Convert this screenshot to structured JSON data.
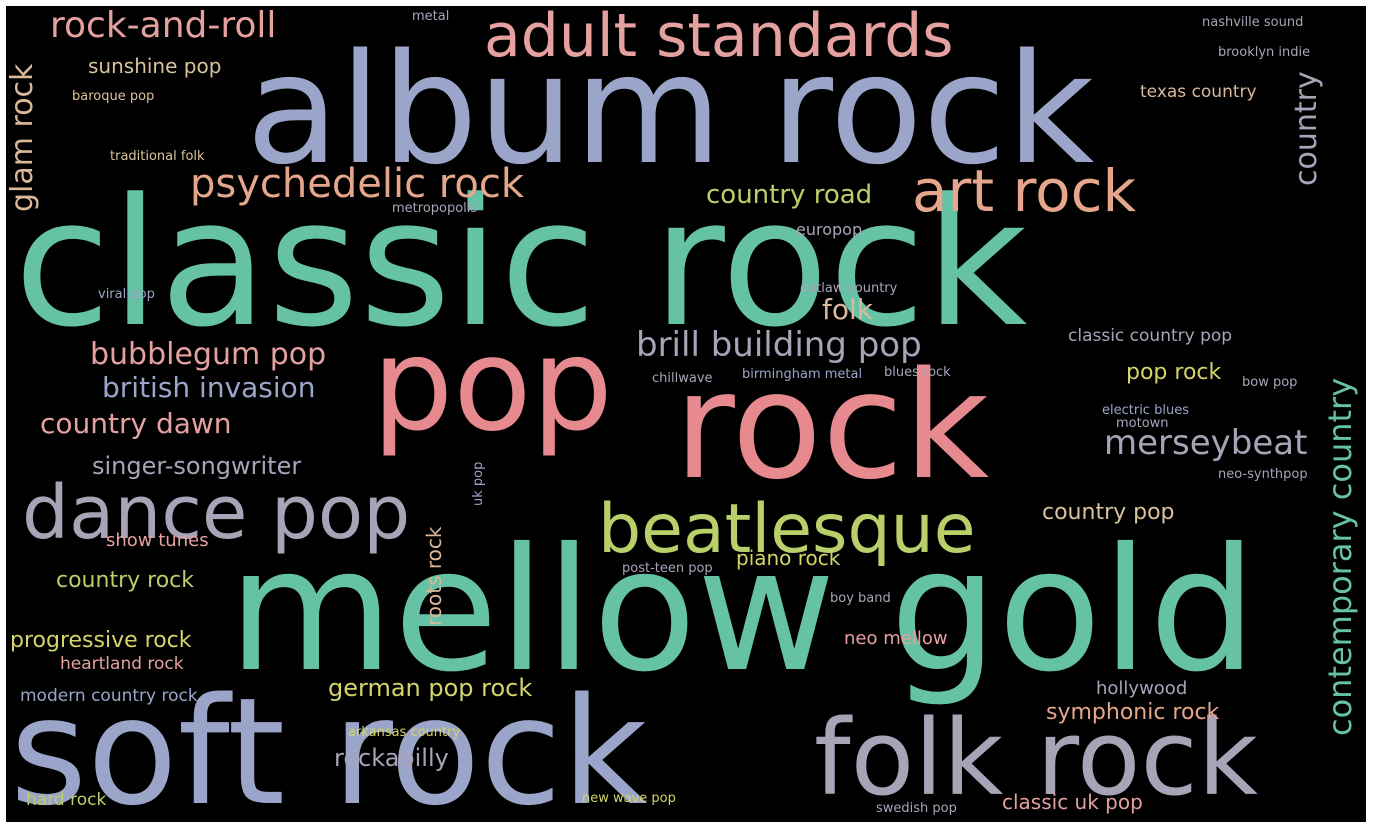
{
  "palette": {
    "background": "#000000",
    "green": "#66c2a5",
    "blue": "#8da0cb",
    "pink": "#e78a8f",
    "yellowgreen": "#b9cf6a",
    "peach": "#e5a68c",
    "lavender": "#a9a3c6",
    "lightgreen": "#a6d854",
    "softblue": "#9fb0d6",
    "tan": "#d9b89c"
  },
  "words": [
    {
      "id": "classic-rock",
      "text": "classic rock",
      "color": "#66c2a5"
    },
    {
      "id": "album-rock",
      "text": "album rock",
      "color": "#9aa5c9"
    },
    {
      "id": "mellow-gold",
      "text": "mellow gold",
      "color": "#66c2a5"
    },
    {
      "id": "rock",
      "text": "rock",
      "color": "#e78a8f"
    },
    {
      "id": "soft-rock",
      "text": "soft rock",
      "color": "#9aa5c9"
    },
    {
      "id": "pop",
      "text": "pop",
      "color": "#e78a8f"
    },
    {
      "id": "folk-rock",
      "text": "folk rock",
      "color": "#a9a3b8"
    },
    {
      "id": "dance-pop",
      "text": "dance pop",
      "color": "#a9a3b8"
    },
    {
      "id": "beatlesque",
      "text": "beatlesque",
      "color": "#b9cf6a"
    },
    {
      "id": "adult-standards",
      "text": "adult standards",
      "color": "#e5a0a0"
    },
    {
      "id": "art-rock",
      "text": "art rock",
      "color": "#e5a68c"
    },
    {
      "id": "psychedelic-rock",
      "text": "psychedelic rock",
      "color": "#e5a68c"
    },
    {
      "id": "rock-and-roll",
      "text": "rock-and-roll",
      "color": "#e5a0a0"
    },
    {
      "id": "brill-building-pop",
      "text": "brill building pop",
      "color": "#a9a3b8"
    },
    {
      "id": "contemporary-country",
      "text": "contemporary country",
      "color": "#66c2a5"
    },
    {
      "id": "merseybeat",
      "text": "merseybeat",
      "color": "#a9a3b8"
    },
    {
      "id": "bubblegum-pop",
      "text": "bubblegum pop",
      "color": "#e5a0a0"
    },
    {
      "id": "british-invasion",
      "text": "british invasion",
      "color": "#9aa5c9"
    },
    {
      "id": "country-dawn",
      "text": "country dawn",
      "color": "#e5a0a0"
    },
    {
      "id": "singer-songwriter",
      "text": "singer-songwriter",
      "color": "#a9a3b8"
    },
    {
      "id": "country-road",
      "text": "country road",
      "color": "#b9cf6a"
    },
    {
      "id": "glam-rock",
      "text": "glam rock",
      "color": "#d9b89c"
    },
    {
      "id": "country",
      "text": "country",
      "color": "#a9a3b8"
    },
    {
      "id": "folk",
      "text": "folk",
      "color": "#d9b89c"
    },
    {
      "id": "sunshine-pop",
      "text": "sunshine pop",
      "color": "#d9c39c"
    },
    {
      "id": "pop-rock",
      "text": "pop rock",
      "color": "#d4d46a"
    },
    {
      "id": "country-pop",
      "text": "country pop",
      "color": "#d9c39c"
    },
    {
      "id": "country-rock",
      "text": "country rock",
      "color": "#b9cf6a"
    },
    {
      "id": "progressive-rock",
      "text": "progressive rock",
      "color": "#d4d46a"
    },
    {
      "id": "heartland-rock",
      "text": "heartland rock",
      "color": "#e5a0a0"
    },
    {
      "id": "german-pop-rock",
      "text": "german pop rock",
      "color": "#d4d46a"
    },
    {
      "id": "symphonic-rock",
      "text": "symphonic rock",
      "color": "#e5a68c"
    },
    {
      "id": "rockabilly",
      "text": "rockabilly",
      "color": "#a9a3b8"
    },
    {
      "id": "classic-uk-pop",
      "text": "classic uk pop",
      "color": "#e5a0a0"
    },
    {
      "id": "roots-rock",
      "text": "roots rock",
      "color": "#d9b89c"
    },
    {
      "id": "piano-rock",
      "text": "piano rock",
      "color": "#d4d46a"
    },
    {
      "id": "show-tunes",
      "text": "show tunes",
      "color": "#e5a0a0"
    },
    {
      "id": "neo-mellow",
      "text": "neo mellow",
      "color": "#e5a0a0"
    },
    {
      "id": "hollywood",
      "text": "hollywood",
      "color": "#a9a3b8"
    },
    {
      "id": "modern-country-rock",
      "text": "modern country rock",
      "color": "#9aa5c9"
    },
    {
      "id": "hard-rock",
      "text": "hard rock",
      "color": "#b9cf6a"
    },
    {
      "id": "classic-country-pop",
      "text": "classic country pop",
      "color": "#a9a3b8"
    },
    {
      "id": "texas-country",
      "text": "texas country",
      "color": "#d9b89c"
    },
    {
      "id": "europop",
      "text": "europop",
      "color": "#a9a3b8"
    },
    {
      "id": "outlaw-country",
      "text": "outlaw country",
      "color": "#a9a3b8"
    },
    {
      "id": "chillwave",
      "text": "chillwave",
      "color": "#a9a3b8"
    },
    {
      "id": "birmingham-metal",
      "text": "birmingham metal",
      "color": "#9aa5c9"
    },
    {
      "id": "blues-rock",
      "text": "blues rock",
      "color": "#a9a3b8"
    },
    {
      "id": "bow-pop",
      "text": "bow pop",
      "color": "#a9a3b8"
    },
    {
      "id": "electric-blues",
      "text": "electric blues",
      "color": "#9aa5c9"
    },
    {
      "id": "motown",
      "text": "motown",
      "color": "#a9a3b8"
    },
    {
      "id": "neo-synthpop",
      "text": "neo-synthpop",
      "color": "#a9a3b8"
    },
    {
      "id": "uk-pop",
      "text": "uk pop",
      "color": "#9aa5c9"
    },
    {
      "id": "post-teen-pop",
      "text": "post-teen pop",
      "color": "#a9a3b8"
    },
    {
      "id": "boy-band",
      "text": "boy band",
      "color": "#a9a3b8"
    },
    {
      "id": "arkansas-country",
      "text": "arkansas country",
      "color": "#d4d46a"
    },
    {
      "id": "new-wave-pop",
      "text": "new wave pop",
      "color": "#d4d46a"
    },
    {
      "id": "swedish-pop",
      "text": "swedish pop",
      "color": "#a9a3b8"
    },
    {
      "id": "metal",
      "text": "metal",
      "color": "#a9a3b8"
    },
    {
      "id": "nashville-sound",
      "text": "nashville sound",
      "color": "#a9a3b8"
    },
    {
      "id": "brooklyn-indie",
      "text": "brooklyn indie",
      "color": "#a9a3b8"
    },
    {
      "id": "baroque-pop",
      "text": "baroque pop",
      "color": "#d9c39c"
    },
    {
      "id": "traditional-folk",
      "text": "traditional folk",
      "color": "#d9c39c"
    },
    {
      "id": "metropopolis",
      "text": "metropopolis",
      "color": "#a9a3b8"
    },
    {
      "id": "viral-pop",
      "text": "viral pop",
      "color": "#9aa5c9"
    }
  ]
}
